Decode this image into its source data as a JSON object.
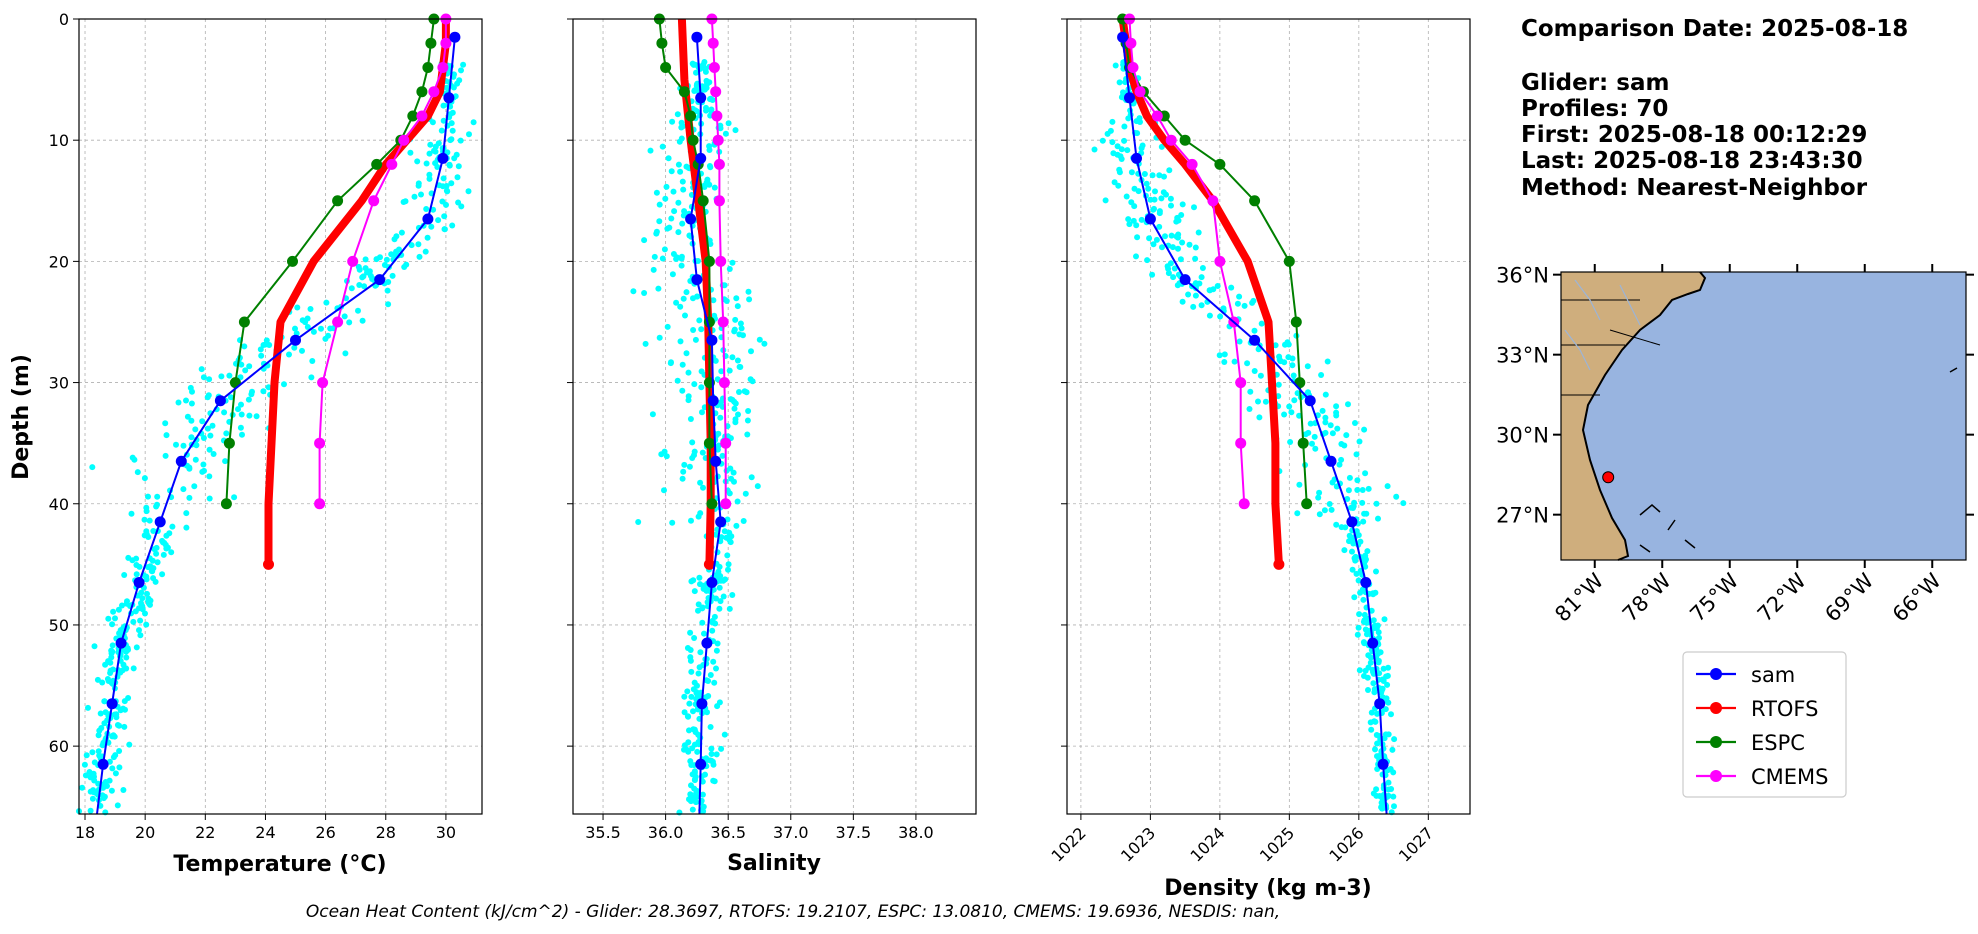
{
  "colors": {
    "glider": "#0000ff",
    "scatter": "#00ffff",
    "rtofs": "#ff0000",
    "espc": "#008000",
    "cmems": "#ff00ff",
    "land": "#cfae7d",
    "ocean": "#98b4e0"
  },
  "info": {
    "comparison_date": "Comparison Date: 2025-08-18",
    "glider": "Glider: sam",
    "profiles": "Profiles: 70",
    "first": "First: 2025-08-18 00:12:29",
    "last": "Last: 2025-08-18 23:43:30",
    "method": "Method: Nearest-Neighbor"
  },
  "ohc_text": "Ocean Heat Content (kJ/cm^2) - Glider: 28.3697,  RTOFS: 19.2107,  ESPC: 13.0810,  CMEMS: 19.6936,  NESDIS: nan,",
  "legend": [
    {
      "label": "sam",
      "color": "#0000ff"
    },
    {
      "label": "RTOFS",
      "color": "#ff0000"
    },
    {
      "label": "ESPC",
      "color": "#008000"
    },
    {
      "label": "CMEMS",
      "color": "#ff00ff"
    }
  ],
  "map": {
    "lat_ticks": [
      "36°N",
      "33°N",
      "30°N",
      "27°N"
    ],
    "lon_ticks": [
      "81°W",
      "78°W",
      "75°W",
      "72°W",
      "69°W",
      "66°W"
    ],
    "lon_range": [
      -82.5,
      -64.5
    ],
    "lat_range": [
      25.3,
      36.1
    ],
    "glider_location": [
      -80.4,
      28.4
    ]
  },
  "chart_data": [
    {
      "type": "line",
      "name": "temperature",
      "xlabel": "Temperature (°C)",
      "ylabel": "Depth (m)",
      "xlim": [
        17.8,
        31.2
      ],
      "ylim": [
        65.6,
        0
      ],
      "xticks": [
        18,
        20,
        22,
        24,
        26,
        28,
        30
      ],
      "yticks": [
        0,
        10,
        20,
        30,
        40,
        50,
        60
      ],
      "grid": true,
      "series": [
        {
          "name": "sam",
          "depth": [
            1.5,
            6.5,
            11.5,
            16.5,
            21.5,
            26.5,
            31.5,
            36.5,
            41.5,
            46.5,
            51.5,
            56.5,
            61.5,
            65.6
          ],
          "values": [
            30.3,
            30.1,
            29.9,
            29.4,
            27.8,
            25.0,
            22.5,
            21.2,
            20.5,
            19.8,
            19.2,
            18.9,
            18.6,
            18.4
          ]
        },
        {
          "name": "RTOFS",
          "depth": [
            0,
            2,
            4,
            6,
            8,
            10,
            12,
            15,
            20,
            25,
            30,
            35,
            40,
            45
          ],
          "values": [
            30.0,
            30.0,
            29.9,
            29.8,
            29.4,
            28.7,
            28.0,
            27.2,
            25.6,
            24.5,
            24.3,
            24.2,
            24.1,
            24.1
          ]
        },
        {
          "name": "ESPC",
          "depth": [
            0,
            2,
            4,
            6,
            8,
            10,
            12,
            15,
            20,
            25,
            30,
            35,
            40
          ],
          "values": [
            29.6,
            29.5,
            29.4,
            29.2,
            28.9,
            28.5,
            27.7,
            26.4,
            24.9,
            23.3,
            23.0,
            22.8,
            22.7
          ]
        },
        {
          "name": "CMEMS",
          "depth": [
            0,
            2,
            4,
            6,
            8,
            10,
            12,
            15,
            20,
            25,
            30,
            35,
            40
          ],
          "values": [
            30.0,
            30.0,
            29.9,
            29.6,
            29.2,
            28.6,
            28.2,
            27.6,
            26.9,
            26.4,
            25.9,
            25.8,
            25.8
          ]
        }
      ]
    },
    {
      "type": "line",
      "name": "salinity",
      "xlabel": "Salinity",
      "xlim": [
        35.26,
        38.48
      ],
      "ylim": [
        65.6,
        0
      ],
      "xticks": [
        35.5,
        36.0,
        36.5,
        37.0,
        37.5,
        38.0
      ],
      "grid": true,
      "series": [
        {
          "name": "sam",
          "depth": [
            1.5,
            6.5,
            11.5,
            16.5,
            21.5,
            26.5,
            31.5,
            36.5,
            41.5,
            46.5,
            51.5,
            56.5,
            61.5,
            65.6
          ],
          "values": [
            36.25,
            36.28,
            36.28,
            36.2,
            36.25,
            36.37,
            36.38,
            36.4,
            36.44,
            36.37,
            36.33,
            36.29,
            36.28,
            36.27
          ]
        },
        {
          "name": "RTOFS",
          "depth": [
            0,
            5,
            10,
            15,
            20,
            25,
            30,
            35,
            40,
            45
          ],
          "values": [
            36.13,
            36.15,
            36.2,
            36.26,
            36.32,
            36.34,
            36.35,
            36.36,
            36.36,
            36.35
          ]
        },
        {
          "name": "ESPC",
          "depth": [
            0,
            2,
            4,
            6,
            8,
            10,
            12,
            15,
            20,
            25,
            30,
            35,
            40
          ],
          "values": [
            35.95,
            35.97,
            36.0,
            36.15,
            36.2,
            36.22,
            36.26,
            36.3,
            36.35,
            36.35,
            36.35,
            36.35,
            36.37
          ]
        },
        {
          "name": "CMEMS",
          "depth": [
            0,
            2,
            4,
            6,
            8,
            10,
            12,
            15,
            20,
            25,
            30,
            35,
            40
          ],
          "values": [
            36.37,
            36.38,
            36.39,
            36.4,
            36.41,
            36.42,
            36.43,
            36.43,
            36.44,
            36.46,
            36.47,
            36.48,
            36.48
          ]
        }
      ]
    },
    {
      "type": "line",
      "name": "density",
      "xlabel": "Density (kg m-3)",
      "xlim": [
        1021.8,
        1027.6
      ],
      "ylim": [
        65.6,
        0
      ],
      "xticks": [
        1022,
        1023,
        1024,
        1025,
        1026,
        1027
      ],
      "grid": true,
      "series": [
        {
          "name": "sam",
          "depth": [
            1.5,
            6.5,
            11.5,
            16.5,
            21.5,
            26.5,
            31.5,
            36.5,
            41.5,
            46.5,
            51.5,
            56.5,
            61.5,
            65.6
          ],
          "values": [
            1022.6,
            1022.7,
            1022.8,
            1023.0,
            1023.5,
            1024.5,
            1025.3,
            1025.6,
            1025.9,
            1026.1,
            1026.2,
            1026.3,
            1026.35,
            1026.4
          ]
        },
        {
          "name": "RTOFS",
          "depth": [
            0,
            2,
            4,
            6,
            8,
            10,
            12,
            15,
            20,
            25,
            30,
            35,
            40,
            45
          ],
          "values": [
            1022.6,
            1022.65,
            1022.7,
            1022.8,
            1022.95,
            1023.2,
            1023.5,
            1023.9,
            1024.4,
            1024.7,
            1024.75,
            1024.8,
            1024.8,
            1024.85
          ]
        },
        {
          "name": "ESPC",
          "depth": [
            0,
            2,
            4,
            6,
            8,
            10,
            12,
            15,
            20,
            25,
            30,
            35,
            40
          ],
          "values": [
            1022.6,
            1022.65,
            1022.7,
            1022.9,
            1023.2,
            1023.5,
            1024.0,
            1024.5,
            1025.0,
            1025.1,
            1025.15,
            1025.2,
            1025.25
          ]
        },
        {
          "name": "CMEMS",
          "depth": [
            0,
            2,
            4,
            6,
            8,
            10,
            12,
            15,
            20,
            25,
            30,
            35,
            40
          ],
          "values": [
            1022.7,
            1022.72,
            1022.75,
            1022.85,
            1023.1,
            1023.3,
            1023.6,
            1023.9,
            1024.0,
            1024.2,
            1024.3,
            1024.3,
            1024.35
          ]
        }
      ]
    }
  ]
}
